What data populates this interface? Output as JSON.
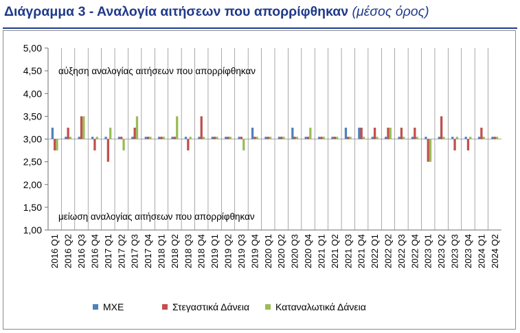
{
  "header": {
    "title_main": "Διάγραμμα 3 - Αναλογία αιτήσεων που απορρίφθηκαν",
    "title_sub": "(μέσος όρος)"
  },
  "chart_data": {
    "type": "bar",
    "title": "Διάγραμμα 3 - Αναλογία αιτήσεων που απορρίφθηκαν",
    "subtitle": "(μέσος όρος)",
    "xlabel": "",
    "ylabel": "",
    "ylim": [
      1.0,
      5.0
    ],
    "baseline": 3.0,
    "yticks": [
      "1,00",
      "1,50",
      "2,00",
      "2,50",
      "3,00",
      "3,50",
      "4,00",
      "4,50",
      "5,00"
    ],
    "grid": "vertical",
    "legend_position": "bottom",
    "categories": [
      "2016 Q1",
      "2016 Q2",
      "2016 Q3",
      "2016 Q4",
      "2017 Q1",
      "2017 Q2",
      "2017 Q3",
      "2017 Q4",
      "2018 Q1",
      "2018 Q2",
      "2018 Q3",
      "2018 Q4",
      "2019 Q1",
      "2019 Q2",
      "2019 Q3",
      "2019 Q4",
      "2020 Q1",
      "2020 Q2",
      "2020 Q3",
      "2020 Q4",
      "2021 Q1",
      "2021 Q2",
      "2021 Q3",
      "2021 Q4",
      "2022 Q1",
      "2022 Q2",
      "2022 Q3",
      "2022 Q4",
      "2023 Q1",
      "2023 Q2",
      "2023 Q3",
      "2023 Q4",
      "2024 Q1",
      "2024 Q2"
    ],
    "series": [
      {
        "name": "ΜΧΕ",
        "color": "#4f81bd",
        "values": [
          3.25,
          3.05,
          3.05,
          3.05,
          3.05,
          3.05,
          3.05,
          3.05,
          3.05,
          3.05,
          3.05,
          3.05,
          3.05,
          3.05,
          3.05,
          3.25,
          3.05,
          3.05,
          3.25,
          3.05,
          3.05,
          3.05,
          3.25,
          3.25,
          3.05,
          3.05,
          3.05,
          3.05,
          3.05,
          3.05,
          3.05,
          3.05,
          3.05,
          3.05
        ]
      },
      {
        "name": "Στεγαστικά Δάνεια",
        "color": "#c0504d",
        "values": [
          2.75,
          3.25,
          3.5,
          2.75,
          2.5,
          3.05,
          3.25,
          3.05,
          3.05,
          3.05,
          2.75,
          3.5,
          3.05,
          3.05,
          3.05,
          3.05,
          3.05,
          3.05,
          3.05,
          3.05,
          3.05,
          3.05,
          3.05,
          3.25,
          3.25,
          3.25,
          3.25,
          3.25,
          2.5,
          3.5,
          2.75,
          2.75,
          3.25,
          3.05
        ]
      },
      {
        "name": "Καταναλωτικά Δάνεια",
        "color": "#9bbb59",
        "values": [
          2.75,
          3.05,
          3.5,
          3.05,
          3.25,
          2.75,
          3.5,
          3.05,
          3.05,
          3.5,
          3.05,
          3.05,
          3.05,
          3.05,
          2.75,
          3.05,
          3.05,
          3.05,
          3.05,
          3.25,
          3.05,
          3.05,
          3.05,
          3.05,
          3.05,
          3.25,
          3.05,
          3.05,
          2.5,
          3.05,
          3.05,
          3.05,
          3.05,
          3.05
        ]
      }
    ],
    "annotations": [
      {
        "text": "αύξηση αναλογίας αιτήσεων που απορρίφθηκαν",
        "value": 4.5
      },
      {
        "text": "μείωση αναλογίας αιτήσεων που απορρίφθηκαν",
        "value": 1.3
      }
    ]
  }
}
